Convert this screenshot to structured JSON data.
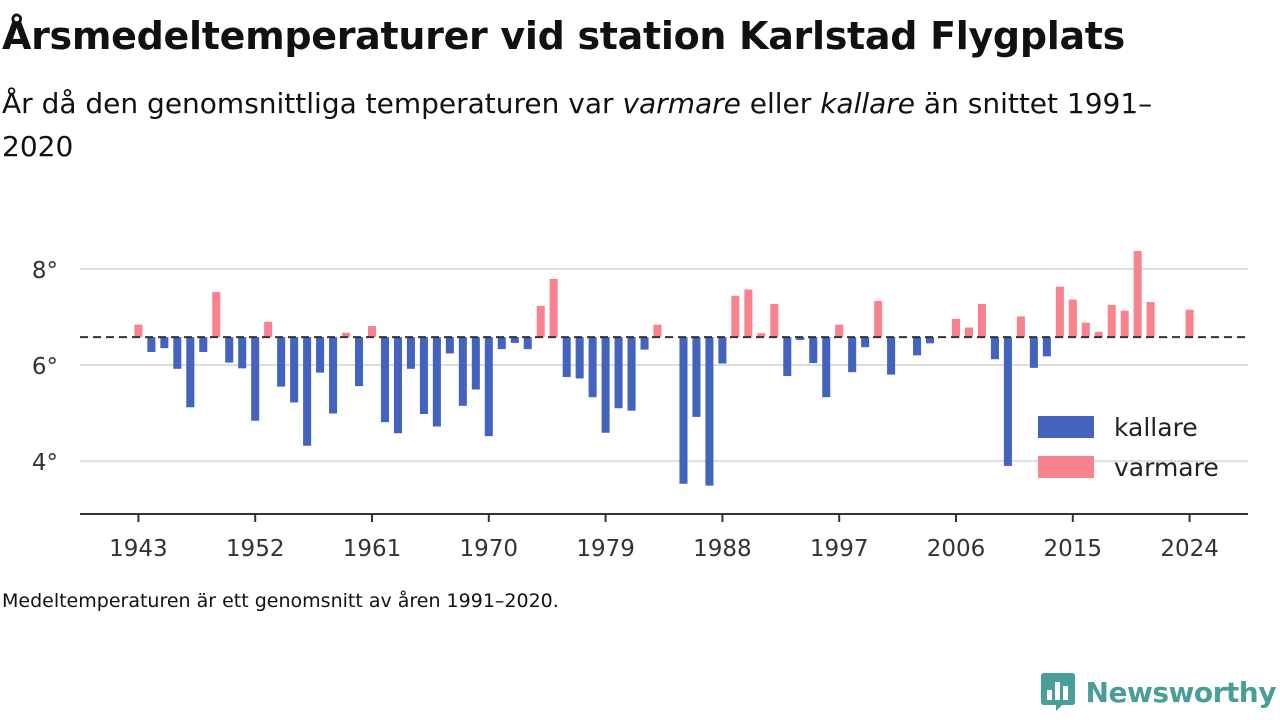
{
  "title": "Årsmedeltemperaturer vid station Karlstad Flygplats",
  "subtitle": {
    "part1": "År då den genomsnittliga temperaturen var ",
    "warm_word": "varmare",
    "part2": " eller ",
    "cold_word": "kallare",
    "part3": " än snittet 1991–2020"
  },
  "note": "Medeltemperaturen är ett genomsnitt av åren 1991–2020.",
  "brand": "Newsworthy",
  "colors": {
    "kallare": "#4363be",
    "varmare": "#f9828f",
    "reference_line": "#333333",
    "grid": "#dddddd"
  },
  "chart_data": {
    "type": "bar",
    "baseline": 6.58,
    "ylim": [
      2.9,
      8.6
    ],
    "yticks": [
      4,
      6,
      8
    ],
    "ytick_labels": [
      "4°",
      "6°",
      "8°"
    ],
    "xlim": [
      1938.5,
      2028.5
    ],
    "xticks": [
      1943,
      1952,
      1961,
      1970,
      1979,
      1988,
      1997,
      2006,
      2015,
      2024
    ],
    "xtick_labels": [
      "1943",
      "1952",
      "1961",
      "1970",
      "1979",
      "1988",
      "1997",
      "2006",
      "2015",
      "2024"
    ],
    "grid": true,
    "legend": {
      "position": "bottom-right",
      "entries": [
        {
          "key": "kallare",
          "label": "kallare"
        },
        {
          "key": "varmare",
          "label": "varmare"
        }
      ]
    },
    "years": [
      1943,
      1944,
      1945,
      1946,
      1947,
      1948,
      1949,
      1950,
      1951,
      1952,
      1953,
      1954,
      1955,
      1956,
      1957,
      1958,
      1959,
      1960,
      1961,
      1962,
      1963,
      1964,
      1965,
      1966,
      1967,
      1968,
      1969,
      1970,
      1971,
      1972,
      1973,
      1974,
      1975,
      1976,
      1977,
      1978,
      1979,
      1980,
      1981,
      1982,
      1983,
      1985,
      1986,
      1987,
      1988,
      1989,
      1990,
      1991,
      1992,
      1993,
      1994,
      1995,
      1996,
      1997,
      1998,
      1999,
      2000,
      2001,
      2003,
      2004,
      2005,
      2006,
      2007,
      2008,
      2009,
      2010,
      2011,
      2012,
      2013,
      2014,
      2015,
      2016,
      2017,
      2018,
      2019,
      2020,
      2021,
      2022,
      2024
    ],
    "values": [
      6.84,
      6.27,
      6.35,
      5.92,
      5.12,
      6.27,
      7.52,
      6.05,
      5.93,
      4.84,
      6.9,
      5.55,
      5.22,
      4.32,
      5.84,
      4.99,
      6.67,
      5.56,
      6.81,
      4.81,
      4.58,
      5.92,
      4.98,
      4.72,
      6.24,
      5.15,
      5.49,
      4.52,
      6.33,
      6.46,
      6.33,
      7.23,
      7.79,
      5.75,
      5.72,
      5.33,
      4.59,
      5.1,
      5.05,
      6.32,
      6.84,
      3.53,
      4.92,
      3.49,
      6.03,
      7.44,
      7.57,
      6.66,
      7.27,
      5.77,
      6.52,
      6.04,
      5.33,
      6.84,
      5.85,
      6.37,
      7.33,
      5.8,
      6.2,
      6.45,
      6.58,
      6.96,
      6.78,
      7.27,
      6.12,
      3.9,
      7.01,
      5.94,
      6.18,
      7.63,
      7.36,
      6.88,
      6.69,
      7.25,
      7.13,
      8.37,
      7.31,
      6.57,
      7.15
    ]
  }
}
